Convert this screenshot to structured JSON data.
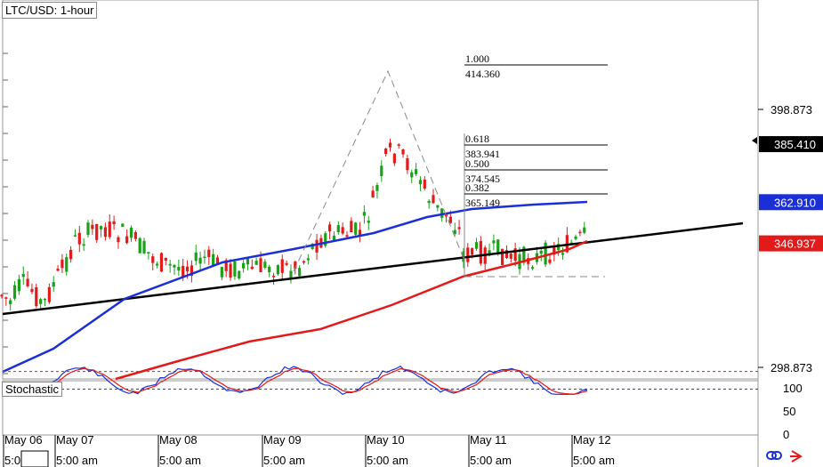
{
  "chart_data": {
    "type": "candlestick",
    "title": "LTC/USD: 1-hour",
    "ylim": [
      285,
      432
    ],
    "y_ticks": [
      "398.873",
      "298.873"
    ],
    "price_tags": [
      {
        "label": "385.410",
        "value": 385.41,
        "color": "#000000",
        "text_color": "#ffffff",
        "name": "current-price-tag"
      },
      {
        "label": "362.910",
        "value": 362.91,
        "color": "#1a2fd6",
        "text_color": "#ffffff",
        "name": "sma100-tag"
      },
      {
        "label": "346.937",
        "value": 346.937,
        "color": "#e31a1a",
        "text_color": "#ffffff",
        "name": "sma200-tag"
      }
    ],
    "fibonacci": {
      "levels": [
        {
          "ratio": "1.000",
          "price": "414.360"
        },
        {
          "ratio": "0.618",
          "price": "383.941"
        },
        {
          "ratio": "0.500",
          "price": "374.545"
        },
        {
          "ratio": "0.382",
          "price": "365.149"
        }
      ]
    },
    "x_date_labels": [
      "May 06",
      "May 07",
      "May 08",
      "May 09",
      "May 10",
      "May 11",
      "May 12"
    ],
    "x_time_labels": [
      "5:00 am",
      "5:00 am",
      "5:00 am",
      "5:00 am",
      "5:00 am",
      "5:00 am",
      "5:00 am"
    ],
    "stochastic": {
      "label": "Stochastic",
      "ylim": [
        0,
        100
      ],
      "ticks": [
        "100",
        "50",
        "0"
      ],
      "levels": [
        80,
        20
      ]
    },
    "colors": {
      "bull": "#1aa11a",
      "bear": "#e31a1a",
      "sma100": "#1a2fd6",
      "sma200": "#e31a1a",
      "trendline": "#000000"
    }
  },
  "icons": [
    "link-icon",
    "arrow-icon"
  ]
}
